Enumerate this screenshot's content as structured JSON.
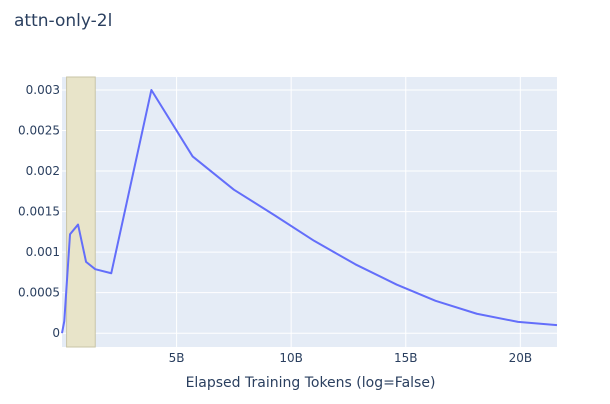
{
  "chart_data": {
    "type": "line",
    "title": "attn-only-2l",
    "xlabel": "Elapsed Training Tokens (log=False)",
    "ylabel": "",
    "x_unit": "tokens",
    "xlim": [
      0,
      21600000000
    ],
    "ylim": [
      -0.00017,
      0.00316
    ],
    "x_ticks": [
      {
        "value": 5000000000,
        "label": "5B"
      },
      {
        "value": 10000000000,
        "label": "10B"
      },
      {
        "value": 15000000000,
        "label": "15B"
      },
      {
        "value": 20000000000,
        "label": "20B"
      }
    ],
    "y_ticks": [
      {
        "value": 0,
        "label": "0"
      },
      {
        "value": 0.0005,
        "label": "0.0005"
      },
      {
        "value": 0.001,
        "label": "0.001"
      },
      {
        "value": 0.0015,
        "label": "0.0015"
      },
      {
        "value": 0.002,
        "label": "0.002"
      },
      {
        "value": 0.0025,
        "label": "0.0025"
      },
      {
        "value": 0.003,
        "label": "0.003"
      }
    ],
    "highlight_region": {
      "x0": 200000000,
      "x1": 1450000000,
      "color": "#e8e4c9"
    },
    "series": [
      {
        "color": "#636efa",
        "x": [
          0,
          100000000,
          350000000,
          700000000,
          1050000000,
          1450000000,
          2150000000,
          3900000000,
          5700000000,
          7500000000,
          9300000000,
          11000000000,
          12800000000,
          14600000000,
          16300000000,
          18100000000,
          19900000000,
          21600000000
        ],
        "y": [
          0,
          0.00015,
          0.00122,
          0.00134,
          0.00088,
          0.00079,
          0.00074,
          0.003,
          0.00218,
          0.00177,
          0.00145,
          0.00114,
          0.00085,
          0.0006,
          0.0004,
          0.00024,
          0.00014,
          0.0001
        ]
      }
    ]
  }
}
